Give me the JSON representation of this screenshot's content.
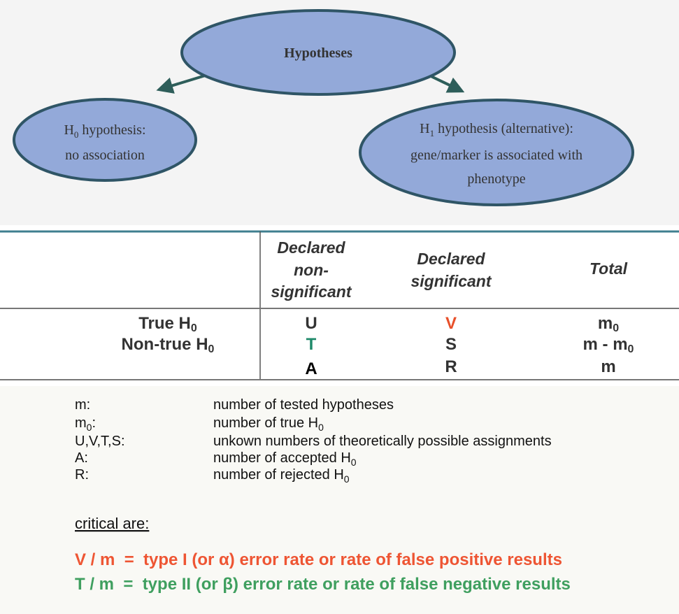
{
  "diagram": {
    "nodes": [
      {
        "label": "Hypotheses"
      },
      {
        "symbol": "H",
        "subscript": "0",
        "label": "hypothesis:",
        "note": "no association"
      },
      {
        "symbol": "H",
        "subscript": "1",
        "label": "hypothesis (alternative):",
        "note": [
          "gene/marker is associated with",
          "phenotype"
        ]
      }
    ]
  },
  "table": {
    "header": [
      [
        "Declared",
        "non-",
        "significant"
      ],
      [
        "Declared",
        "significant"
      ],
      [
        "Total"
      ]
    ],
    "rows": [
      {
        "label": {
          "text": "True H",
          "sub": "0"
        },
        "cells": [
          "U",
          "V",
          {
            "text": "m",
            "sub": "0"
          }
        ]
      },
      {
        "label": {
          "text": "Non-true H",
          "sub": "0"
        },
        "cells": [
          "T",
          "S",
          {
            "text": "m - m",
            "sub": "0"
          }
        ]
      },
      {
        "cells": [
          "A",
          "R",
          "m"
        ]
      }
    ]
  },
  "definitions": [
    {
      "term": "m:",
      "desc": "number of tested hypotheses"
    },
    {
      "term": "m",
      "term_sub": "0",
      "term_after": ":",
      "desc": "number of true H",
      "desc_sub": "0"
    },
    {
      "term": "U,V,T,S:",
      "desc": "unkown numbers of theoretically possible assignments"
    },
    {
      "term": "A:",
      "desc": "number of accepted H",
      "desc_sub": "0"
    },
    {
      "term": "R:",
      "desc": "number of rejected H",
      "desc_sub": "0"
    }
  ],
  "critical": {
    "heading": "critical are:",
    "lines": [
      "V / m  =  type I (or α) error rate or rate of false positive results",
      "T / m  =  type II (or β) error rate or rate of false negative results"
    ]
  }
}
